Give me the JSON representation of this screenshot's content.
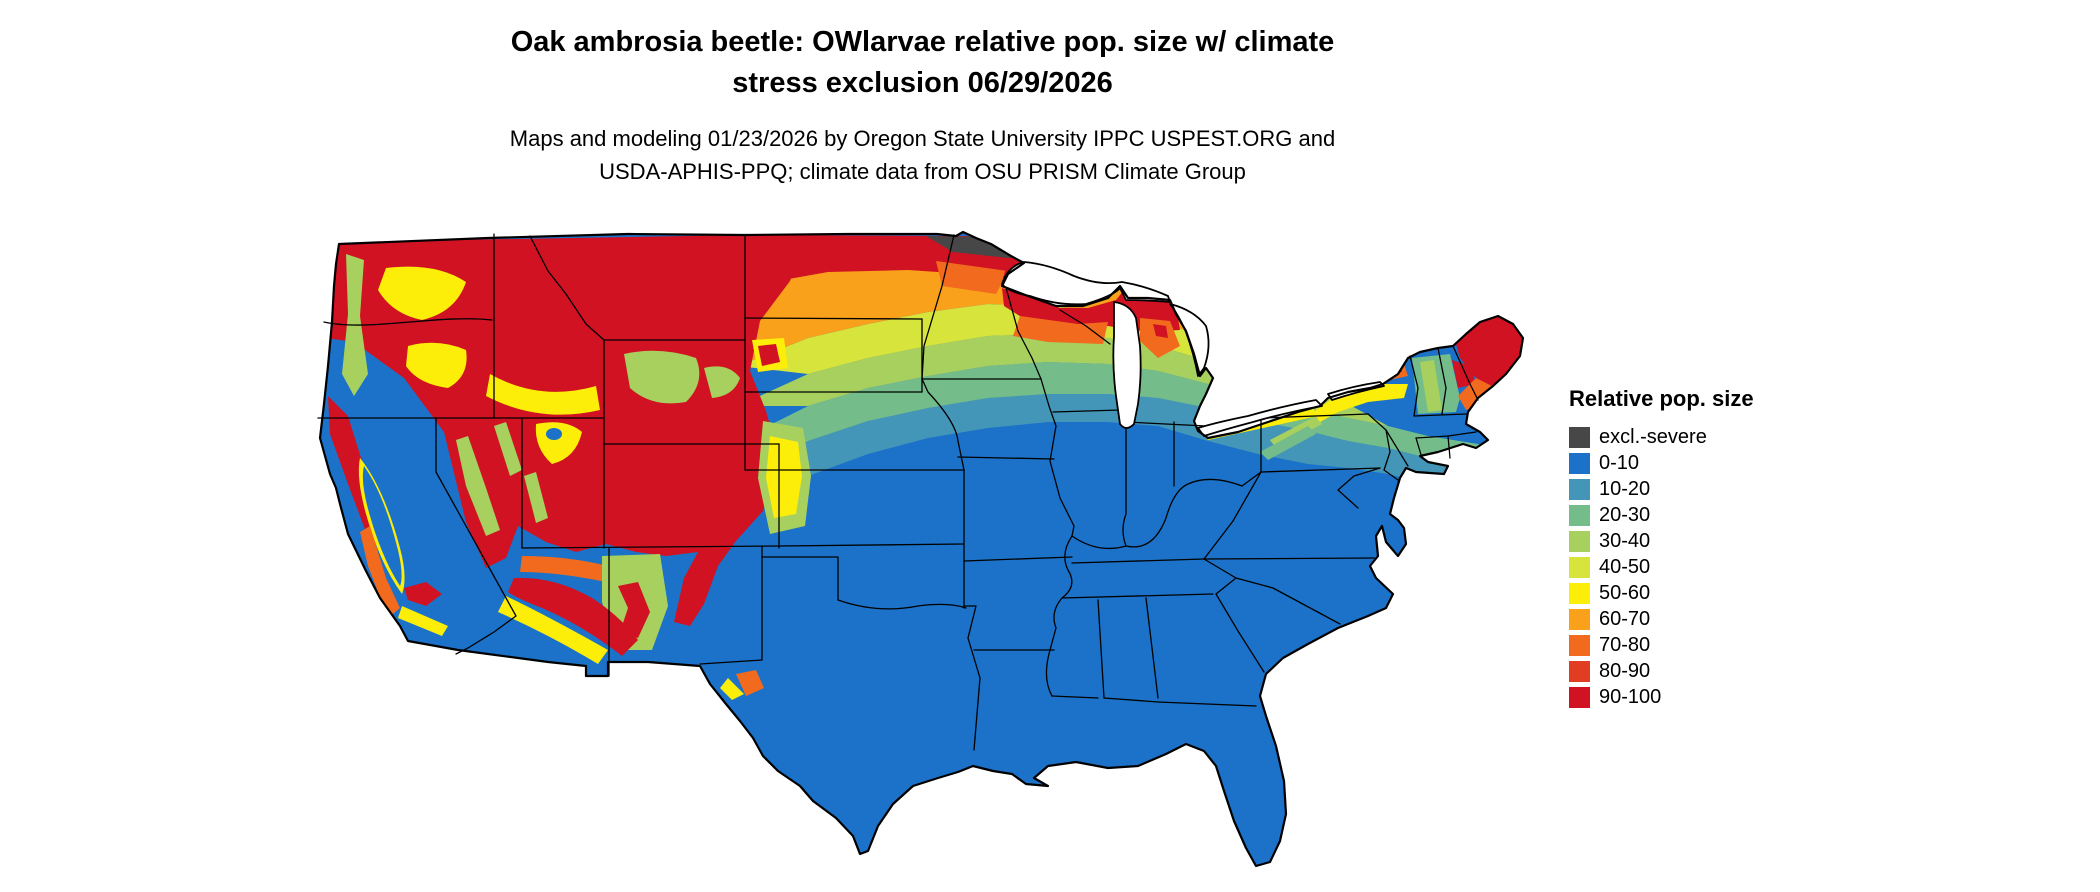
{
  "title": {
    "line1": "Oak ambrosia beetle: OWlarvae relative pop. size w/ climate",
    "line2": "stress exclusion 06/29/2026"
  },
  "subtitle": {
    "line1": "Maps and modeling 01/23/2026 by Oregon State University IPPC USPEST.ORG and",
    "line2": "USDA-APHIS-PPQ; climate data from OSU PRISM Climate Group"
  },
  "legend": {
    "title": "Relative pop. size",
    "items": [
      {
        "label": "excl.-severe",
        "color": "#474747"
      },
      {
        "label": "0-10",
        "color": "#1b72c8"
      },
      {
        "label": "10-20",
        "color": "#4496b8"
      },
      {
        "label": "20-30",
        "color": "#74bd8b"
      },
      {
        "label": "30-40",
        "color": "#a8d05e"
      },
      {
        "label": "40-50",
        "color": "#d7e43b"
      },
      {
        "label": "50-60",
        "color": "#fcee09"
      },
      {
        "label": "60-70",
        "color": "#f9a11b"
      },
      {
        "label": "70-80",
        "color": "#f26a1e"
      },
      {
        "label": "80-90",
        "color": "#e13d22"
      },
      {
        "label": "90-100",
        "color": "#d01223"
      }
    ]
  },
  "map": {
    "region": "contiguous United States with state boundaries",
    "regions_summary": [
      {
        "area": "Pacific Northwest / northern Rockies / Great Basin",
        "level": "90-100"
      },
      {
        "area": "northern Minnesota border strip",
        "level": "excl.-severe"
      },
      {
        "area": "northern plains (ND, SD)",
        "level": "60-70"
      },
      {
        "area": "upper Midwest (WI, MI, MN)",
        "level": "50-60"
      },
      {
        "area": "central plains and Midwest transition",
        "level": "20-30"
      },
      {
        "area": "South, Texas, Southeast, Florida, mid-Atlantic",
        "level": "0-10"
      },
      {
        "area": "northern New England and Maine",
        "level": "90-100"
      },
      {
        "area": "California Central Valley and desert Southwest",
        "level": "0-10"
      }
    ]
  }
}
